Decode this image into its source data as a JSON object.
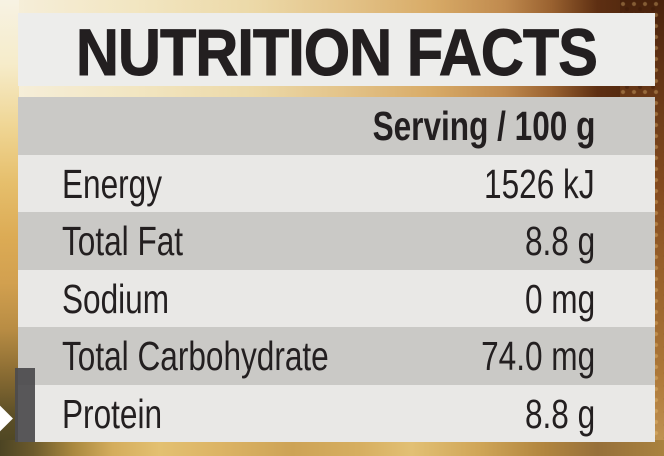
{
  "panel": {
    "title": "NUTRITION FACTS",
    "serving_header": "Serving / 100 g",
    "rows": [
      {
        "label": "Energy",
        "value": "1526 kJ"
      },
      {
        "label": "Total Fat",
        "value": "8.8 g"
      },
      {
        "label": "Sodium",
        "value": "0 mg"
      },
      {
        "label": "Total Carbohydrate",
        "value": "74.0 mg"
      },
      {
        "label": "Protein",
        "value": "8.8 g"
      }
    ]
  },
  "decor": {
    "arrow_icon": "right-arrow-diamond"
  },
  "colors": {
    "title_band": "#ededeb",
    "row_dark": "#cac9c6",
    "row_light": "#e9e8e6",
    "text": "#231f20",
    "flag": "#4c4b4d",
    "arrow": "#ffffff",
    "photo_gold": "#d8ab67",
    "photo_brown": "#5c2f13"
  }
}
